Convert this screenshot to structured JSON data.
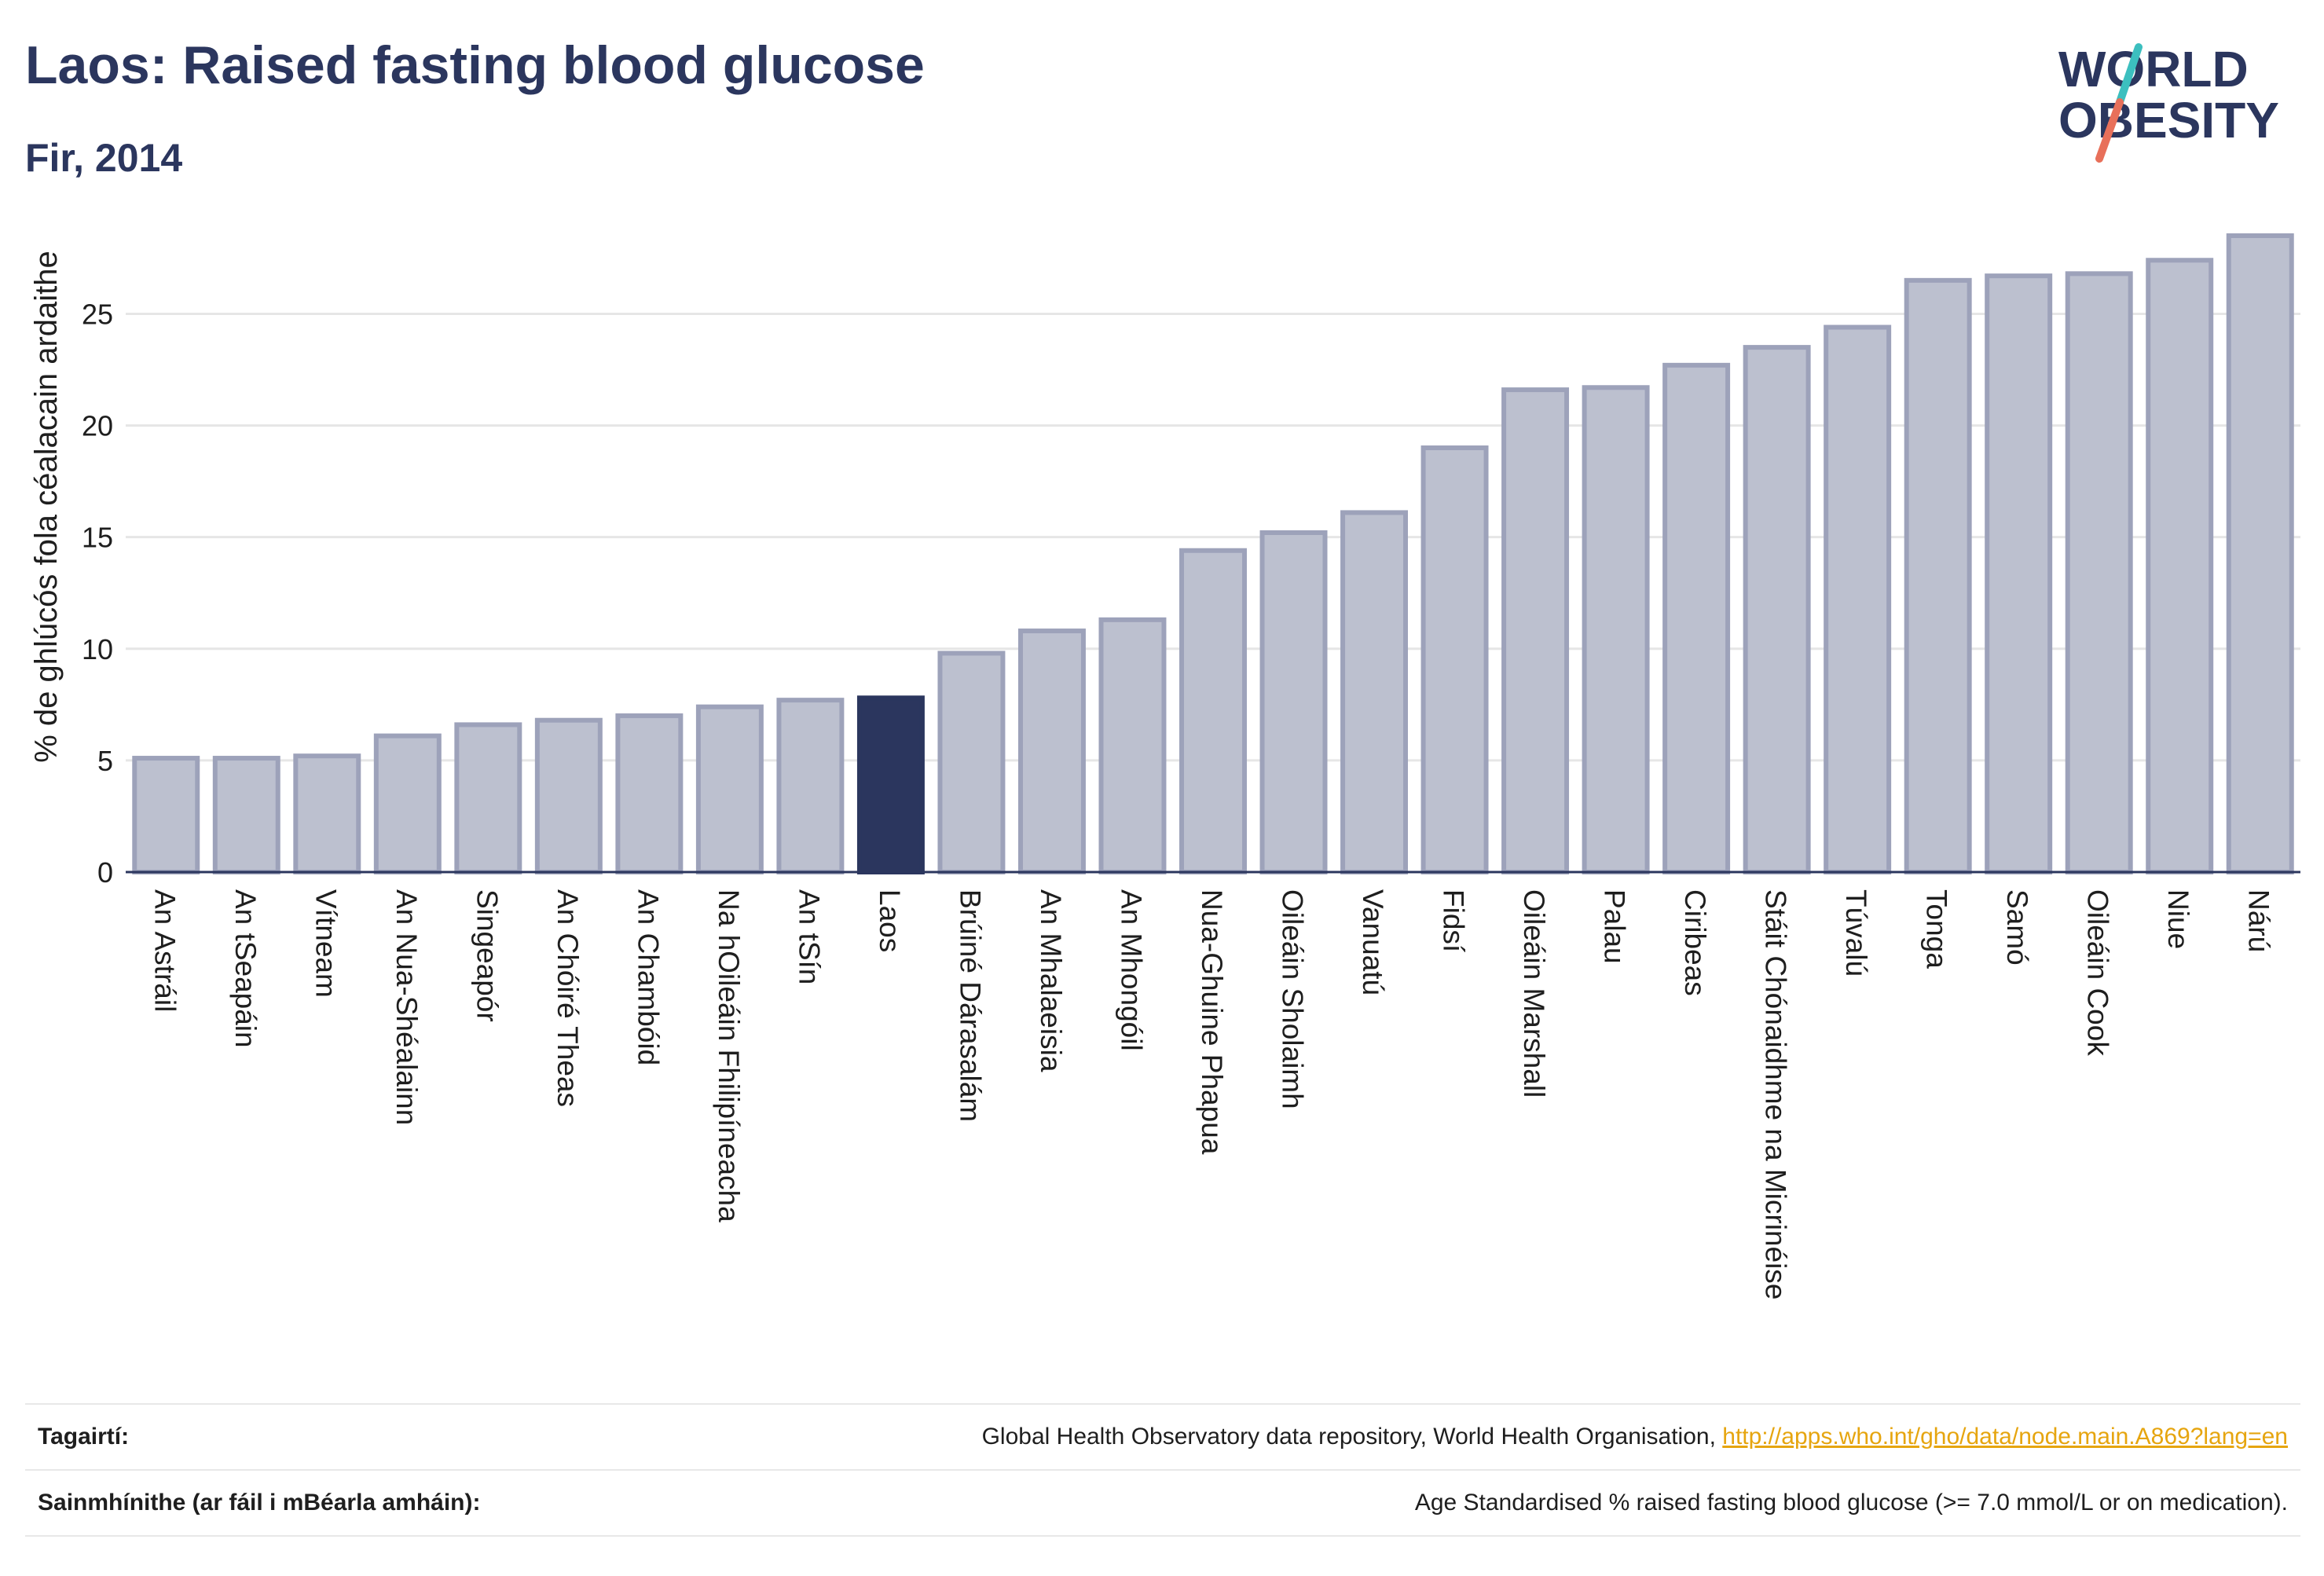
{
  "header": {
    "title": "Laos: Raised fasting blood glucose",
    "subtitle": "Fir, 2014"
  },
  "logo": {
    "line1": "WORLD",
    "line2": "OBESITY"
  },
  "chart_data": {
    "type": "bar",
    "ylabel": "% de ghlúcós fola céalacain ardaithe",
    "ylim": [
      0,
      28.5
    ],
    "yticks": [
      0,
      5,
      10,
      15,
      20,
      25
    ],
    "grid": true,
    "highlight": "Laos",
    "colors": {
      "bar": "#bcc0cf",
      "bar_stroke": "#9da2ba",
      "highlight": "#2b365e",
      "axis": "#2b365e"
    },
    "categories": [
      "An Astráil",
      "An tSeapáin",
      "Vítneam",
      "An Nua-Shéalainn",
      "Singeapór",
      "An Chóiré Theas",
      "An Chambóid",
      "Na hOileáin Fhilipíneacha",
      "An tSín",
      "Laos",
      "Brúiné Dárasalám",
      "An Mhalaeisia",
      "An Mhongóil",
      "Nua-Ghuine Phapua",
      "Oileáin Sholaimh",
      "Vanuatú",
      "Fidsí",
      "Oileáin Marshall",
      "Palau",
      "Ciribeas",
      "Stáit Chónaidhme na Micrinéise",
      "Túvalú",
      "Tonga",
      "Samó",
      "Oileáin Cook",
      "Niue",
      "Nárú"
    ],
    "values": [
      5.1,
      5.1,
      5.2,
      6.1,
      6.6,
      6.8,
      7.0,
      7.4,
      7.7,
      7.8,
      9.8,
      10.8,
      11.3,
      14.4,
      15.2,
      16.1,
      19.0,
      21.6,
      21.7,
      22.7,
      23.5,
      24.4,
      26.5,
      26.7,
      26.8,
      27.4,
      28.5
    ]
  },
  "references": {
    "sources_label": "Tagairtí:",
    "sources_text": "Global Health Observatory data repository, World Health Organisation, ",
    "sources_link": "http://apps.who.int/gho/data/node.main.A869?lang=en",
    "definitions_label": "Sainmhínithe (ar fáil i mBéarla amháin):",
    "definitions_text": "Age Standardised % raised fasting blood glucose (>= 7.0 mmol/L or on medication)."
  }
}
